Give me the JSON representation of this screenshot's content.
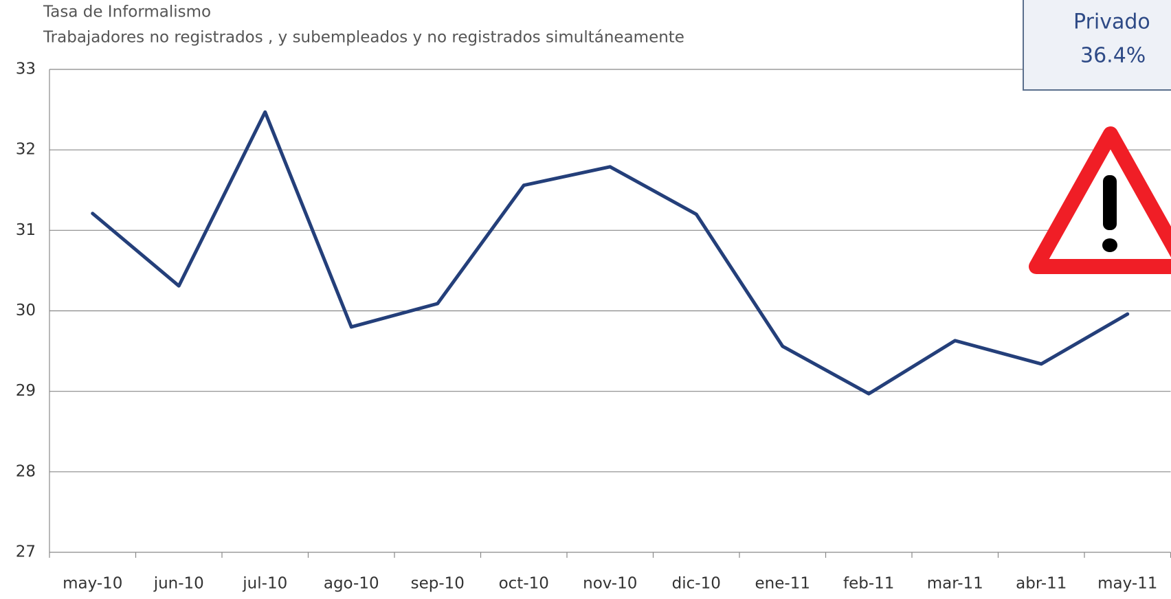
{
  "chart_data": {
    "type": "line",
    "title": "Tasa de Informalismo",
    "subtitle": "Trabajadores no registrados ,  y subempleados y no registrados simultáneamente",
    "categories": [
      "may-10",
      "jun-10",
      "jul-10",
      "ago-10",
      "sep-10",
      "oct-10",
      "nov-10",
      "dic-10",
      "ene-11",
      "feb-11",
      "mar-11",
      "abr-11",
      "may-11"
    ],
    "series": [
      {
        "color": "#243f7a",
        "values": [
          31.21,
          30.31,
          32.47,
          29.8,
          30.09,
          31.56,
          31.79,
          31.2,
          29.56,
          28.97,
          29.63,
          29.34,
          29.96
        ]
      }
    ],
    "ylim": [
      27,
      33
    ],
    "yticks": [
      27,
      28,
      29,
      30,
      31,
      32,
      33
    ],
    "grid": true,
    "annotations": [
      "Privado",
      "36.4%"
    ]
  }
}
